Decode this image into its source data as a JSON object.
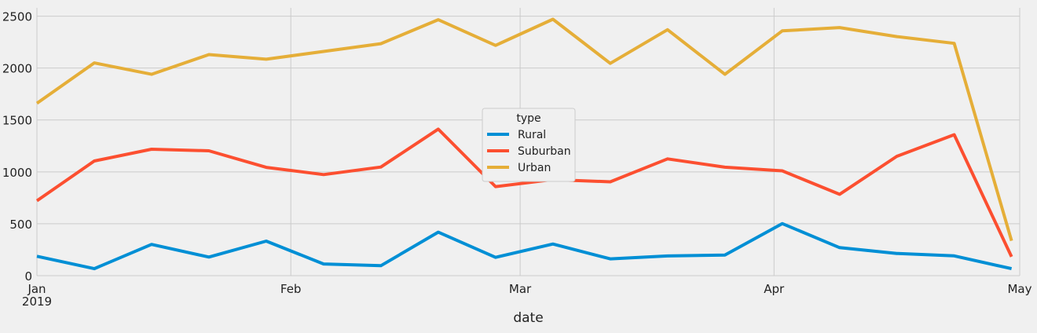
{
  "chart_data": {
    "type": "line",
    "title": "",
    "xlabel": "date",
    "ylabel": "",
    "ylim": [
      0,
      2580
    ],
    "xlim": [
      "2019-01-01",
      "2019-05-01"
    ],
    "yticks": [
      0,
      500,
      1000,
      1500,
      2000,
      2500
    ],
    "xticks": [
      {
        "date": "2019-01-01",
        "label": "Jan",
        "sublabel": "2019"
      },
      {
        "date": "2019-02-01",
        "label": "Feb",
        "sublabel": ""
      },
      {
        "date": "2019-03-01",
        "label": "Mar",
        "sublabel": ""
      },
      {
        "date": "2019-04-01",
        "label": "Apr",
        "sublabel": ""
      },
      {
        "date": "2019-05-01",
        "label": "May",
        "sublabel": ""
      }
    ],
    "grid": true,
    "legend": {
      "title": "type",
      "placement": "center"
    },
    "x": [
      "2019-01-01",
      "2019-01-08",
      "2019-01-15",
      "2019-01-22",
      "2019-01-29",
      "2019-02-05",
      "2019-02-12",
      "2019-02-19",
      "2019-02-26",
      "2019-03-05",
      "2019-03-12",
      "2019-03-19",
      "2019-03-26",
      "2019-04-02",
      "2019-04-09",
      "2019-04-16",
      "2019-04-23",
      "2019-04-30"
    ],
    "series": [
      {
        "name": "Rural",
        "color": "#008fd5",
        "values": [
          187,
          67,
          301,
          179,
          333,
          113,
          96,
          419,
          176,
          305,
          162,
          190,
          198,
          502,
          270,
          214,
          191,
          67
        ]
      },
      {
        "name": "Suburban",
        "color": "#fc4f30",
        "values": [
          722,
          1105,
          1218,
          1203,
          1043,
          974,
          1046,
          1412,
          858,
          925,
          904,
          1125,
          1045,
          1010,
          784,
          1150,
          1358,
          182
        ]
      },
      {
        "name": "Urban",
        "color": "#e5ae38",
        "values": [
          1661,
          2050,
          1940,
          2130,
          2085,
          2160,
          2235,
          2466,
          2218,
          2470,
          2045,
          2370,
          1940,
          2358,
          2390,
          2303,
          2238,
          336
        ]
      }
    ]
  }
}
